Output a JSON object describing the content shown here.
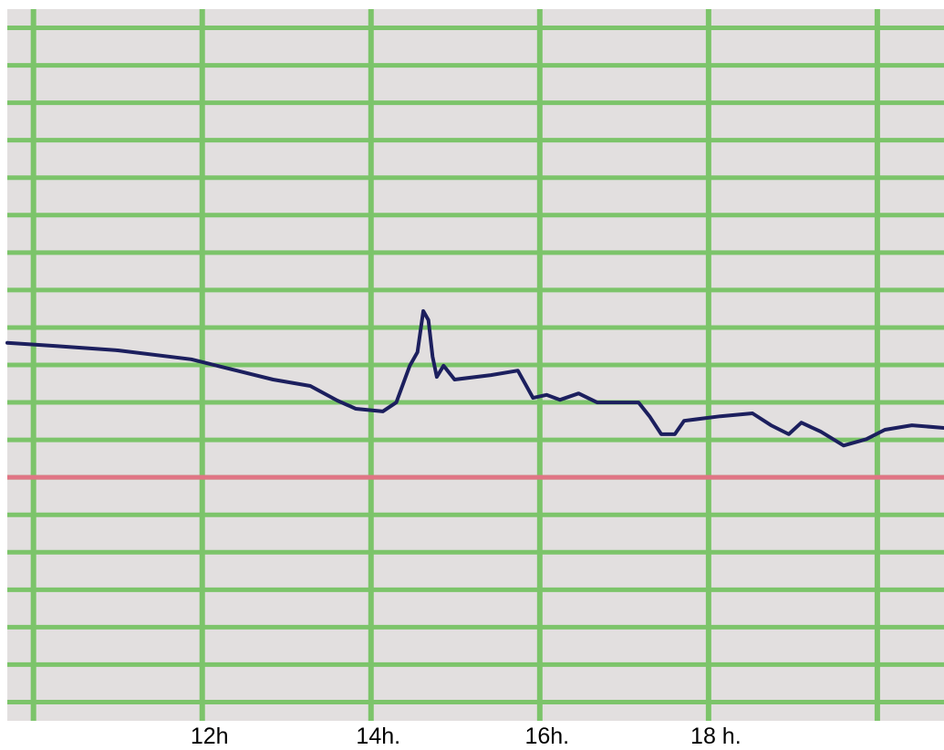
{
  "chart_data": {
    "type": "line",
    "x": [
      9.69,
      10.25,
      11.0,
      11.87,
      12.41,
      12.84,
      13.28,
      13.6,
      13.82,
      14.14,
      14.3,
      14.46,
      14.55,
      14.62,
      14.68,
      14.73,
      14.78,
      14.86,
      14.99,
      15.42,
      15.74,
      15.92,
      16.08,
      16.24,
      16.46,
      16.68,
      17.17,
      17.3,
      17.44,
      17.6,
      17.71,
      18.14,
      18.52,
      18.74,
      18.95,
      19.1,
      19.33,
      19.6,
      19.87,
      20.09,
      20.41,
      20.79
    ],
    "series": [
      {
        "color": "#1c1f5e",
        "values": [
          3.59,
          3.51,
          3.39,
          3.15,
          2.85,
          2.61,
          2.44,
          2.05,
          1.83,
          1.76,
          2.0,
          2.98,
          3.34,
          4.44,
          4.2,
          3.22,
          2.68,
          2.98,
          2.61,
          2.73,
          2.85,
          2.12,
          2.2,
          2.07,
          2.24,
          2.0,
          2.0,
          1.63,
          1.15,
          1.15,
          1.51,
          1.63,
          1.71,
          1.39,
          1.15,
          1.46,
          1.22,
          0.85,
          1.02,
          1.27,
          1.39,
          1.32
        ]
      }
    ],
    "xlim": [
      9.69,
      20.79
    ],
    "xticks": [
      {
        "value": 10,
        "label": null
      },
      {
        "value": 12,
        "label": "12h"
      },
      {
        "value": 14,
        "label": "14h."
      },
      {
        "value": 16,
        "label": "16h."
      },
      {
        "value": 18,
        "label": "18 h."
      },
      {
        "value": 20,
        "label": null
      }
    ],
    "ylim": [
      -6.5,
      12.5
    ],
    "yticks": [
      -6,
      -5,
      -4,
      -3,
      -2,
      -1,
      0,
      1,
      2,
      3,
      4,
      5,
      6,
      7,
      8,
      9,
      10,
      11,
      12
    ],
    "grid": true,
    "grid_color": "#7cc46a",
    "reference_line": {
      "value": 0,
      "color": "#e07585"
    }
  }
}
